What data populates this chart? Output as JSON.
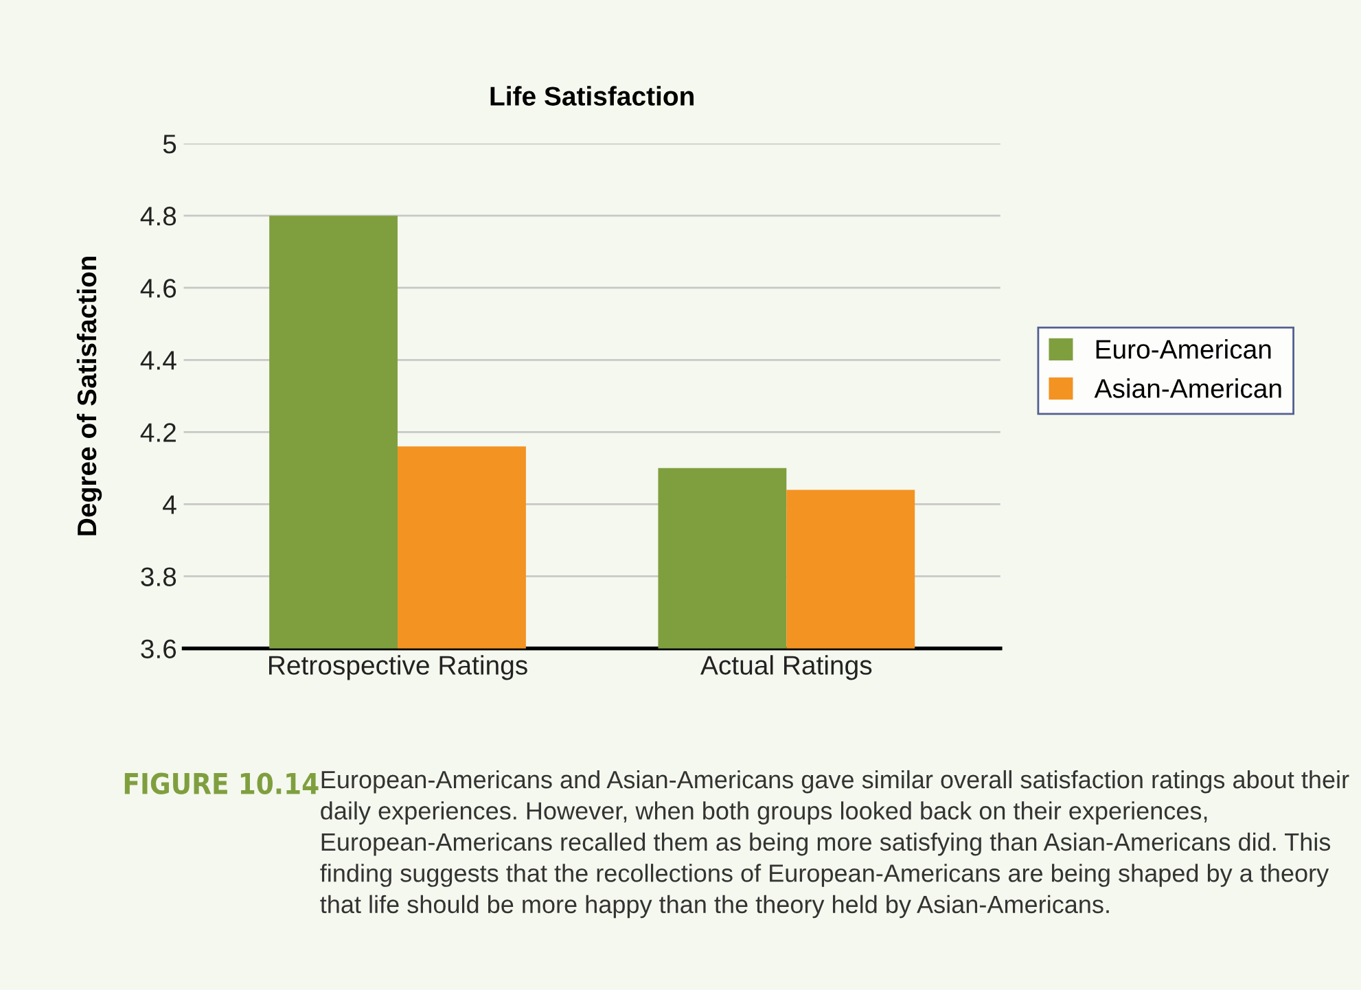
{
  "chart_data": {
    "type": "bar",
    "title": "Life Satisfaction",
    "ylabel": "Degree of Satisfaction",
    "categories": [
      "Retrospective Ratings",
      "Actual Ratings"
    ],
    "series": [
      {
        "name": "Euro-American",
        "color": "#7f9f3f",
        "values": [
          4.8,
          4.1
        ]
      },
      {
        "name": "Asian-American",
        "color": "#f39322",
        "values": [
          4.16,
          4.04
        ]
      }
    ],
    "ylim": [
      3.6,
      5
    ],
    "yticks": [
      3.6,
      3.8,
      4,
      4.2,
      4.4,
      4.6,
      4.8,
      5
    ],
    "grid": "y",
    "legend": "right",
    "annotations": [
      "FIGURE 10.14",
      "European-Americans and Asian-Americans gave similar overall satisfaction ratings about their daily experiences. However, when both groups looked back on their experiences, European-Americans recalled them as being more satisfying than Asian-Americans did. This finding suggests that the recollections of European-Americans are being shaped by a theory that life should be more happy than the theory held by Asian-Americans."
    ]
  }
}
